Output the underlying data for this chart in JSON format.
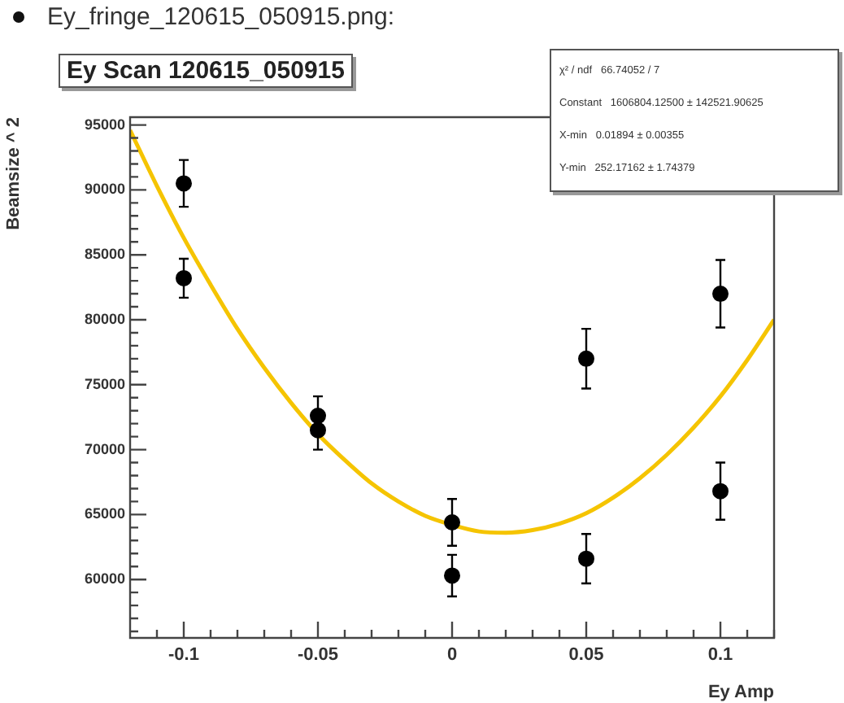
{
  "chart_data": {
    "type": "scatter",
    "title": "Ey Scan 120615_050915",
    "xlabel": "Ey Amp",
    "ylabel": "Beamsize ^ 2",
    "annotations": [
      "Ey_fringe_120615_050915.png:",
      "χ² / ndf   66.74052 / 7",
      "Constant   1606804.12500 ± 142521.90625",
      "X-min   0.01894 ± 0.00355",
      "Y-min   252.17162 ± 1.74379"
    ],
    "xlim": [
      -0.12,
      0.12
    ],
    "xticks": [
      -0.1,
      -0.05,
      0,
      0.05,
      0.1
    ],
    "ylim": [
      55500,
      95600
    ],
    "yticks": [
      60000,
      65000,
      70000,
      75000,
      80000,
      85000,
      90000,
      95000
    ],
    "series": [
      {
        "type": "scatter",
        "marker": "circle",
        "color": "#000000",
        "x": [
          -0.1,
          -0.1,
          -0.05,
          -0.05,
          0,
          0,
          0.05,
          0.05,
          0.1,
          0.1
        ],
        "values": [
          90500,
          83200,
          72600,
          71500,
          64400,
          60300,
          77000,
          61600,
          82000,
          66800
        ],
        "errors": [
          1800,
          1500,
          1500,
          1500,
          1800,
          1600,
          2300,
          1900,
          2600,
          2200
        ]
      },
      {
        "type": "line",
        "marker": "none",
        "color": "#f5c400",
        "x": [
          -0.12,
          -0.11,
          -0.1,
          -0.09,
          -0.08,
          -0.07,
          -0.06,
          -0.05,
          -0.04,
          -0.03,
          -0.02,
          -0.01,
          0,
          0.01,
          0.02,
          0.03,
          0.04,
          0.05,
          0.06,
          0.07,
          0.08,
          0.09,
          0.1,
          0.11,
          0.12
        ],
        "values": [
          94600,
          90300,
          86300,
          82700,
          79300,
          76300,
          73600,
          71200,
          69200,
          67400,
          66000,
          64900,
          64200,
          63700,
          63600,
          63800,
          64300,
          65100,
          66300,
          67800,
          69600,
          71700,
          74100,
          76900,
          80000
        ]
      }
    ]
  }
}
